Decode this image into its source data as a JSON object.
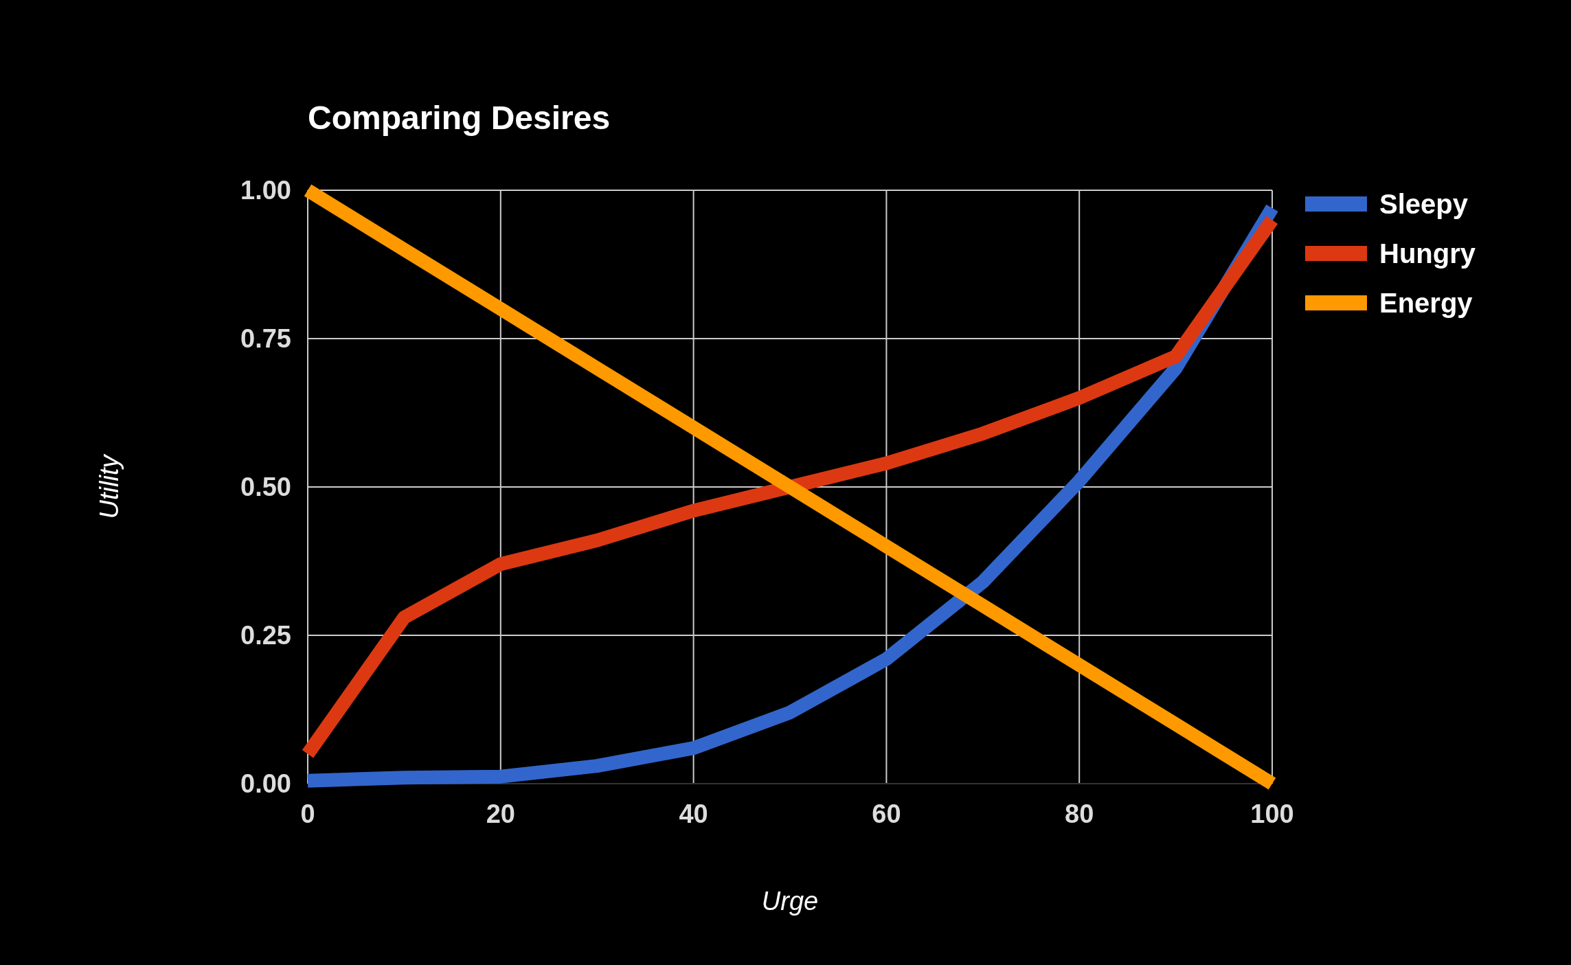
{
  "chart_data": {
    "type": "line",
    "title": "Comparing Desires",
    "xlabel": "Urge",
    "ylabel": "Utility",
    "x": [
      0,
      10,
      20,
      30,
      40,
      50,
      60,
      70,
      80,
      90,
      100
    ],
    "series": [
      {
        "name": "Sleepy",
        "color": "#3366cc",
        "values": [
          0.005,
          0.01,
          0.012,
          0.03,
          0.06,
          0.12,
          0.21,
          0.34,
          0.51,
          0.7,
          0.97
        ]
      },
      {
        "name": "Hungry",
        "color": "#dc3912",
        "values": [
          0.05,
          0.28,
          0.37,
          0.41,
          0.46,
          0.5,
          0.54,
          0.59,
          0.65,
          0.72,
          0.95
        ]
      },
      {
        "name": "Energy",
        "color": "#ff9900",
        "values": [
          1,
          0.9,
          0.8,
          0.7,
          0.6,
          0.5,
          0.4,
          0.3,
          0.2,
          0.1,
          0
        ]
      }
    ],
    "xlim": [
      0,
      100
    ],
    "xticks": [
      0,
      20,
      40,
      60,
      80,
      100
    ],
    "ylim": [
      0,
      1
    ],
    "yticks": [
      {
        "value": 0,
        "label": "0.00"
      },
      {
        "value": 0.25,
        "label": "0.25"
      },
      {
        "value": 0.5,
        "label": "0.50"
      },
      {
        "value": 0.75,
        "label": "0.75"
      },
      {
        "value": 1,
        "label": "1.00"
      }
    ],
    "grid": true,
    "legend": "right",
    "marker": "none",
    "line_style": "solid"
  }
}
